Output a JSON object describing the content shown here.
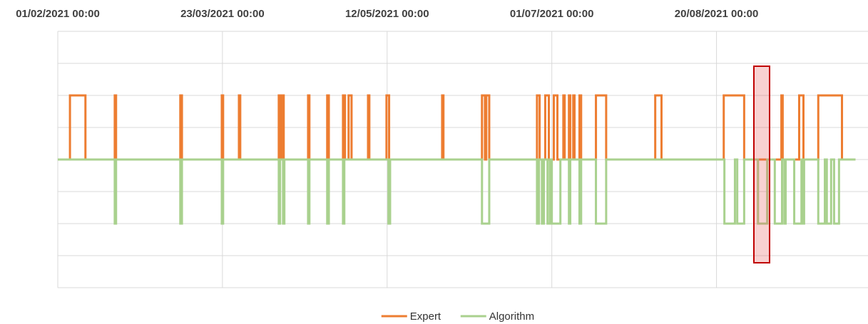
{
  "chart_data": {
    "type": "step",
    "xlim": [
      0,
      246
    ],
    "xticks": [
      {
        "value": 0,
        "label": "01/02/2021 00:00"
      },
      {
        "value": 50,
        "label": "23/03/2021 00:00"
      },
      {
        "value": 100,
        "label": "12/05/2021 00:00"
      },
      {
        "value": 150,
        "label": "01/07/2021 00:00"
      },
      {
        "value": 200,
        "label": "20/08/2021 00:00"
      }
    ],
    "ylim": [
      -2,
      2
    ],
    "yticks": [
      -2,
      -1.5,
      -1,
      -0.5,
      0,
      0.5,
      1,
      1.5,
      2
    ],
    "grid": true,
    "legend": "bottom",
    "series": [
      {
        "name": "Expert",
        "color": "#ed7d31",
        "x": [
          0,
          3.7,
          8.4,
          17.3,
          17.7,
          37.2,
          37.7,
          49.8,
          50.2,
          55,
          55.4,
          67.1,
          67.7,
          68,
          68.6,
          76,
          76.4,
          81.8,
          82.3,
          86.6,
          87.2,
          88.3,
          89.2,
          94.2,
          94.6,
          99.8,
          100.6,
          116.7,
          117.1,
          128.8,
          129.7,
          130.1,
          131,
          145.5,
          146.3,
          148,
          149.1,
          150.6,
          151.7,
          153.5,
          153.9,
          155.2,
          155.6,
          156.5,
          156.9,
          158.4,
          158.9,
          163.4,
          166.5,
          181.4,
          183.3,
          202.2,
          208.4,
          219.7,
          220.1,
          225.1,
          226.4,
          230.9,
          238.1,
          242.2
        ],
        "values": [
          0,
          1,
          0,
          1,
          0,
          1,
          0,
          1,
          0,
          1,
          0,
          1,
          0,
          1,
          0,
          1,
          0,
          1,
          0,
          1,
          0,
          1,
          0,
          1,
          0,
          1,
          0,
          1,
          0,
          1,
          0,
          1,
          0,
          1,
          0,
          1,
          0,
          1,
          0,
          1,
          0,
          1,
          0,
          1,
          0,
          1,
          0,
          1,
          0,
          1,
          0,
          1,
          0,
          1,
          0,
          1,
          0,
          1,
          0,
          0
        ]
      },
      {
        "name": "Algorithm",
        "color": "#a9d18e",
        "x": [
          0,
          17.3,
          17.7,
          37.2,
          37.7,
          49.8,
          50.2,
          67.1,
          67.5,
          68.4,
          68.8,
          76,
          76.4,
          81.8,
          82.3,
          86.6,
          87,
          100.4,
          100.9,
          128.8,
          131,
          145.5,
          146.1,
          147,
          147.6,
          148.7,
          149.4,
          150,
          152.6,
          155.2,
          155.6,
          158.4,
          158.9,
          163.4,
          166.5,
          202.4,
          205.6,
          206.3,
          208.4,
          212.6,
          215.4,
          217.7,
          219.9,
          220.6,
          221,
          223.6,
          225.8,
          226.2,
          226.6,
          230.9,
          232.9,
          233.5,
          234.8,
          235.7,
          237.2,
          242.2
        ],
        "values": [
          0,
          -1,
          0,
          -1,
          0,
          -1,
          0,
          -1,
          0,
          -1,
          0,
          -1,
          0,
          -1,
          0,
          -1,
          0,
          -1,
          0,
          -1,
          0,
          -1,
          0,
          -1,
          0,
          -1,
          0,
          -1,
          0,
          -1,
          0,
          -1,
          0,
          -1,
          0,
          -1,
          0,
          -1,
          0,
          -1,
          0,
          -1,
          0,
          -1,
          0,
          -1,
          0,
          -1,
          0,
          -1,
          0,
          -1,
          0,
          -1,
          0,
          0
        ]
      }
    ]
  }
}
